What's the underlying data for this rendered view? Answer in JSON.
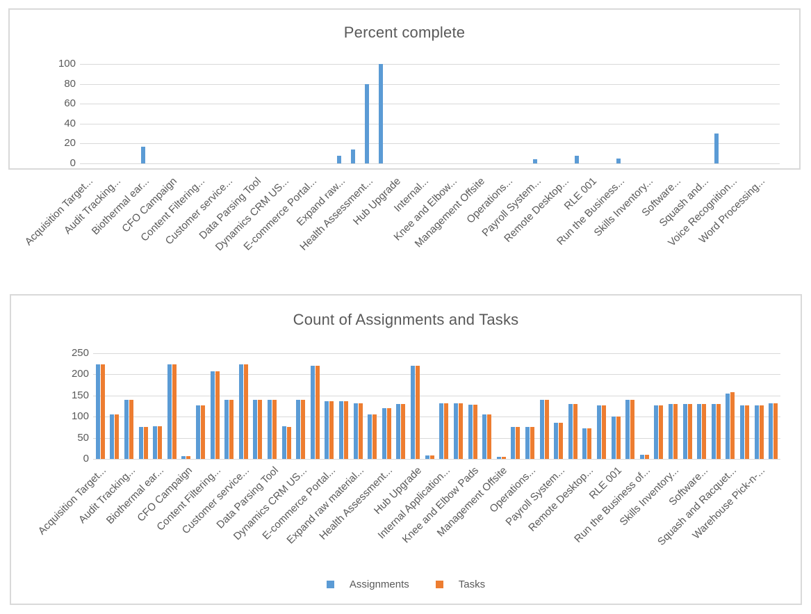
{
  "colors": {
    "assignments_blue": "#5b9bd5",
    "tasks_orange": "#ed7d31",
    "gridline": "#d9d9d9",
    "chart_border": "#d9d9d9",
    "text_gray": "#595959"
  },
  "chart_data": [
    {
      "type": "bar",
      "title": "Percent complete",
      "xlabel": "",
      "ylabel": "",
      "ylim": [
        0,
        100
      ],
      "grid": true,
      "legend_position": "none",
      "y_axis": {
        "min": 0,
        "max": 100,
        "ticks": [
          0,
          20,
          40,
          60,
          80,
          100
        ]
      },
      "n_slots": 50,
      "label_interval": 2,
      "categories": [
        "Acquisition Target...",
        "Audit Tracking...",
        "Biothermal ear...",
        "CFO Campaign",
        "Content Filtering...",
        "Customer service...",
        "Data Parsing Tool",
        "Dynamics CRM US...",
        "E-commerce Portal...",
        "Expand raw...",
        "Health Assessment...",
        "Hub Upgrade",
        "Internal...",
        "Knee and Elbow...",
        "Management Offsite",
        "Operations...",
        "Payroll System...",
        "Remote Desktop...",
        "RLE 001",
        "Run the Business...",
        "Skills Inventory...",
        "Software...",
        "Squash and...",
        "Voice Recognition...",
        "Word Processing..."
      ],
      "series": [
        {
          "name": "Percent complete",
          "color": "#5b9bd5",
          "bars": [
            {
              "slot": 4,
              "value": 17,
              "category": "Biothermal ear..."
            },
            {
              "slot": 18,
              "value": 8,
              "category": "Expand raw..."
            },
            {
              "slot": 19,
              "value": 14,
              "category": "(unlabeled)"
            },
            {
              "slot": 20,
              "value": 80,
              "category": "Health Assessment..."
            },
            {
              "slot": 21,
              "value": 100,
              "category": "(unlabeled)"
            },
            {
              "slot": 32,
              "value": 4,
              "category": "Payroll System..."
            },
            {
              "slot": 35,
              "value": 8,
              "category": "(unlabeled)"
            },
            {
              "slot": 38,
              "value": 5,
              "category": "Run the Business..."
            },
            {
              "slot": 45,
              "value": 30,
              "category": "(unlabeled)"
            }
          ]
        }
      ]
    },
    {
      "type": "bar",
      "title": "Count of Assignments and Tasks",
      "xlabel": "",
      "ylabel": "",
      "ylim": [
        0,
        250
      ],
      "grid": true,
      "legend_position": "bottom",
      "y_axis": {
        "min": 0,
        "max": 250,
        "ticks": [
          0,
          50,
          100,
          150,
          200,
          250
        ]
      },
      "n_slots": 48,
      "label_interval": 2,
      "categories": [
        "Acquisition Target...",
        "Audit Tracking...",
        "Biothermal ear...",
        "CFO Campaign",
        "Content Filtering...",
        "Customer service...",
        "Data Parsing Tool",
        "Dynamics CRM US...",
        "E-commerce Portal...",
        "Expand raw material...",
        "Health Assessment...",
        "Hub Upgrade",
        "Internal Application...",
        "Knee and Elbow Pads",
        "Management Offsite",
        "Operations...",
        "Payroll System...",
        "Remote Desktop...",
        "RLE 001",
        "Run the Business of...",
        "Skills Inventory...",
        "Software...",
        "Squash and Racquet...",
        "Warehouse Pick-n-..."
      ],
      "series": [
        {
          "name": "Assignments",
          "color": "#5b9bd5",
          "values": [
            223,
            105,
            140,
            75,
            78,
            223,
            6,
            127,
            208,
            140,
            223,
            140,
            140,
            77,
            140,
            220,
            137,
            137,
            131,
            105,
            120,
            130,
            220,
            8,
            131,
            132,
            128,
            105,
            5,
            75,
            75,
            140,
            85,
            130,
            72,
            127,
            100,
            140,
            10,
            127,
            130,
            130,
            130,
            130,
            155,
            127,
            127,
            132
          ]
        },
        {
          "name": "Tasks",
          "color": "#ed7d31",
          "values": [
            223,
            105,
            140,
            75,
            78,
            223,
            6,
            127,
            208,
            140,
            223,
            140,
            140,
            75,
            140,
            220,
            137,
            137,
            131,
            105,
            120,
            130,
            220,
            8,
            131,
            132,
            128,
            105,
            5,
            75,
            75,
            140,
            85,
            130,
            72,
            127,
            100,
            140,
            10,
            127,
            130,
            130,
            130,
            130,
            158,
            127,
            127,
            132
          ]
        }
      ],
      "legend": [
        "Assignments",
        "Tasks"
      ]
    }
  ]
}
